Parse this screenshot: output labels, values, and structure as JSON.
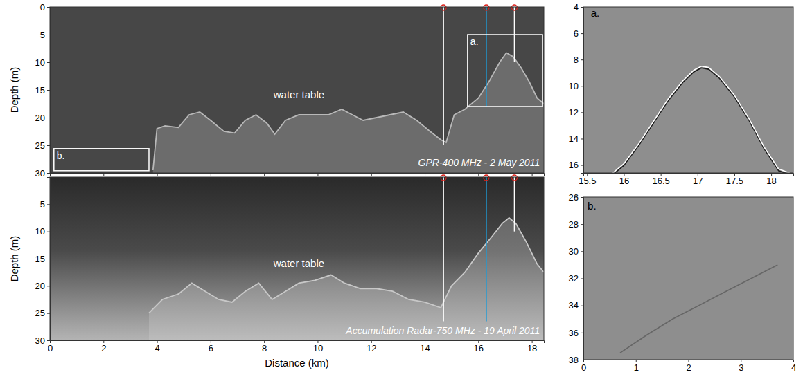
{
  "chart_data": [
    {
      "type": "line",
      "xlim": [
        0,
        18.45
      ],
      "ylim": [
        0,
        30
      ],
      "xticks": [
        0,
        2,
        4,
        6,
        8,
        10,
        12,
        14,
        16,
        18
      ],
      "yticks": [
        0,
        5,
        10,
        15,
        20,
        25,
        30
      ],
      "tick_labels": "y",
      "ylabel": "Depth (m)",
      "series": [
        {
          "type": "area",
          "color": "#b8b8b8",
          "x": [
            3.85,
            4.0,
            4.3,
            4.8,
            5.2,
            5.6,
            6.0,
            6.5,
            6.9,
            7.3,
            7.7,
            8.1,
            8.4,
            8.8,
            9.3,
            9.9,
            10.4,
            10.9,
            11.3,
            11.7,
            12.2,
            12.7,
            13.2,
            13.7,
            14.2,
            14.6,
            14.8,
            15.1,
            15.5,
            16.0,
            16.4,
            16.8,
            17.05,
            17.3,
            17.6,
            17.9,
            18.2,
            18.45
          ],
          "values": [
            29.5,
            22.0,
            21.5,
            21.8,
            19.5,
            19.0,
            20.5,
            22.5,
            22.8,
            20.5,
            19.5,
            21.0,
            23.0,
            20.5,
            19.5,
            19.5,
            19.5,
            18.5,
            19.5,
            20.5,
            20.0,
            19.5,
            19.0,
            20.5,
            22.5,
            24.0,
            24.5,
            19.5,
            18.5,
            16.5,
            13.5,
            10.0,
            8.3,
            9.0,
            11.0,
            13.5,
            16.5,
            17.5
          ]
        }
      ],
      "vertical_lines": [
        {
          "x": 14.7,
          "y_end": 25,
          "color": "#ffffff"
        },
        {
          "x": 16.3,
          "y_end": 18,
          "color": "#1e9bd7"
        },
        {
          "x": 17.35,
          "y_end": 10,
          "color": "#ffffff"
        }
      ],
      "boxes": [
        {
          "label": "a.",
          "xlim": [
            15.6,
            18.4
          ],
          "ylim": [
            5,
            18
          ]
        },
        {
          "label": "b.",
          "xlim": [
            0.15,
            3.7
          ],
          "ylim": [
            25.6,
            29.6
          ]
        }
      ],
      "annotations": [
        {
          "text": "water table",
          "x": 9.3,
          "y": 16.5
        },
        {
          "text": "GPR-400 MHz - 2 May 2011",
          "x": 18.3,
          "y": 28.8
        }
      ]
    },
    {
      "type": "line",
      "xlim": [
        0,
        18.45
      ],
      "ylim": [
        0,
        30
      ],
      "xticks": [
        0,
        2,
        4,
        6,
        8,
        10,
        12,
        14,
        16,
        18
      ],
      "yticks": [
        5,
        10,
        15,
        20,
        25,
        30
      ],
      "xlabel": "Distance (km)",
      "ylabel": "Depth (m)",
      "series": [
        {
          "type": "area",
          "color": "#c8c8c8",
          "x": [
            3.7,
            4.2,
            4.8,
            5.3,
            5.8,
            6.3,
            6.8,
            7.3,
            7.8,
            8.3,
            8.8,
            9.3,
            9.9,
            10.5,
            11.0,
            11.6,
            12.2,
            12.8,
            13.4,
            14.0,
            14.6,
            15.0,
            15.5,
            16.0,
            16.5,
            16.9,
            17.15,
            17.4,
            17.8,
            18.2,
            18.45
          ],
          "values": [
            25.0,
            22.5,
            21.5,
            19.5,
            21.0,
            22.5,
            23.0,
            21.0,
            19.5,
            22.5,
            21.0,
            19.5,
            19.0,
            18.0,
            19.5,
            20.5,
            20.5,
            21.0,
            22.5,
            23.0,
            24.0,
            20.0,
            17.5,
            14.0,
            11.0,
            8.5,
            7.5,
            8.5,
            12.0,
            16.0,
            17.5
          ]
        }
      ],
      "vertical_lines": [
        {
          "x": 14.7,
          "y_end": 26.5,
          "color": "#ffffff"
        },
        {
          "x": 16.3,
          "y_end": 26.5,
          "color": "#1e9bd7"
        },
        {
          "x": 17.35,
          "y_end": 10,
          "color": "#ffffff"
        }
      ],
      "annotations": [
        {
          "text": "water table",
          "x": 9.3,
          "y": 16.5
        },
        {
          "text": "Accumulation Radar-750 MHz - 19 April 2011",
          "x": 18.3,
          "y": 28.8
        }
      ]
    },
    {
      "type": "line",
      "xlim": [
        15.45,
        18.3
      ],
      "ylim": [
        4,
        16.6
      ],
      "xticks": [
        15.5,
        16,
        16.5,
        17,
        17.5,
        18
      ],
      "yticks": [
        4,
        6,
        8,
        10,
        12,
        14,
        16
      ],
      "series": [
        {
          "type": "line",
          "color": "#ffffff",
          "x": [
            15.85,
            16.0,
            16.2,
            16.4,
            16.6,
            16.8,
            16.95,
            17.05,
            17.15,
            17.3,
            17.5,
            17.7,
            17.9,
            18.1,
            18.25
          ],
          "values": [
            16.6,
            15.9,
            14.4,
            12.7,
            11.0,
            9.6,
            8.8,
            8.5,
            8.6,
            9.3,
            10.7,
            12.5,
            14.6,
            16.3,
            16.6
          ]
        }
      ],
      "annotations": [
        {
          "text": "a.",
          "x": 15.55,
          "y": 4.75
        }
      ]
    },
    {
      "type": "line",
      "xlim": [
        0,
        4
      ],
      "ylim": [
        26,
        38
      ],
      "xticks": [
        0,
        1,
        2,
        3,
        4
      ],
      "yticks": [
        26,
        28,
        30,
        32,
        34,
        36,
        38
      ],
      "series": [
        {
          "type": "line",
          "color": "#666666",
          "x": [
            0.7,
            1.2,
            1.7,
            2.2,
            2.7,
            3.2,
            3.7
          ],
          "values": [
            37.5,
            36.2,
            35.0,
            34.0,
            33.0,
            32.0,
            31.0
          ]
        }
      ],
      "annotations": [
        {
          "text": "b.",
          "x": 0.08,
          "y": 26.9
        }
      ]
    }
  ]
}
